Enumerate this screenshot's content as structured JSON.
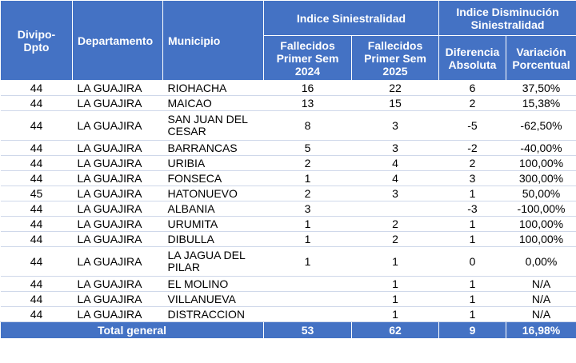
{
  "table": {
    "headers": {
      "divipo": "Divipo-\nDpto",
      "departamento": "Departamento",
      "municipio": "Municipio",
      "group_siniestralidad": "Indice Siniestralidad",
      "group_disminucion": "Indice Disminución\nSiniestralidad",
      "fallecidos_2024": "Fallecidos\nPrimer Sem\n2024",
      "fallecidos_2025": "Fallecidos\nPrimer Sem\n2025",
      "diferencia": "Diferencia\nAbsoluta",
      "variacion": "Variación\nPorcentual"
    },
    "rows": [
      {
        "divipo": "44",
        "departamento": "LA GUAJIRA",
        "municipio": "RIOHACHA",
        "f2024": "16",
        "f2025": "22",
        "diferencia": "6",
        "variacion": "37,50%"
      },
      {
        "divipo": "44",
        "departamento": "LA GUAJIRA",
        "municipio": "MAICAO",
        "f2024": "13",
        "f2025": "15",
        "diferencia": "2",
        "variacion": "15,38%"
      },
      {
        "divipo": "44",
        "departamento": "LA GUAJIRA",
        "municipio": "SAN JUAN DEL\nCESAR",
        "f2024": "8",
        "f2025": "3",
        "diferencia": "-5",
        "variacion": "-62,50%"
      },
      {
        "divipo": "44",
        "departamento": "LA GUAJIRA",
        "municipio": "BARRANCAS",
        "f2024": "5",
        "f2025": "3",
        "diferencia": "-2",
        "variacion": "-40,00%"
      },
      {
        "divipo": "44",
        "departamento": "LA GUAJIRA",
        "municipio": "URIBIA",
        "f2024": "2",
        "f2025": "4",
        "diferencia": "2",
        "variacion": "100,00%"
      },
      {
        "divipo": "44",
        "departamento": "LA GUAJIRA",
        "municipio": "FONSECA",
        "f2024": "1",
        "f2025": "4",
        "diferencia": "3",
        "variacion": "300,00%"
      },
      {
        "divipo": "45",
        "departamento": "LA GUAJIRA",
        "municipio": "HATONUEVO",
        "f2024": "2",
        "f2025": "3",
        "diferencia": "1",
        "variacion": "50,00%"
      },
      {
        "divipo": "44",
        "departamento": "LA GUAJIRA",
        "municipio": "ALBANIA",
        "f2024": "3",
        "f2025": "",
        "diferencia": "-3",
        "variacion": "-100,00%"
      },
      {
        "divipo": "44",
        "departamento": "LA GUAJIRA",
        "municipio": "URUMITA",
        "f2024": "1",
        "f2025": "2",
        "diferencia": "1",
        "variacion": "100,00%"
      },
      {
        "divipo": "44",
        "departamento": "LA GUAJIRA",
        "municipio": "DIBULLA",
        "f2024": "1",
        "f2025": "2",
        "diferencia": "1",
        "variacion": "100,00%"
      },
      {
        "divipo": "44",
        "departamento": "LA GUAJIRA",
        "municipio": "LA JAGUA DEL\nPILAR",
        "f2024": "1",
        "f2025": "1",
        "diferencia": "0",
        "variacion": "0,00%"
      },
      {
        "divipo": "44",
        "departamento": "LA GUAJIRA",
        "municipio": "EL MOLINO",
        "f2024": "",
        "f2025": "1",
        "diferencia": "1",
        "variacion": "N/A"
      },
      {
        "divipo": "44",
        "departamento": "LA GUAJIRA",
        "municipio": "VILLANUEVA",
        "f2024": "",
        "f2025": "1",
        "diferencia": "1",
        "variacion": "N/A"
      },
      {
        "divipo": "44",
        "departamento": "LA GUAJIRA",
        "municipio": "DISTRACCION",
        "f2024": "",
        "f2025": "1",
        "diferencia": "1",
        "variacion": "N/A"
      }
    ],
    "total": {
      "label": "Total general",
      "f2024": "53",
      "f2025": "62",
      "diferencia": "9",
      "variacion": "16,98%"
    }
  }
}
